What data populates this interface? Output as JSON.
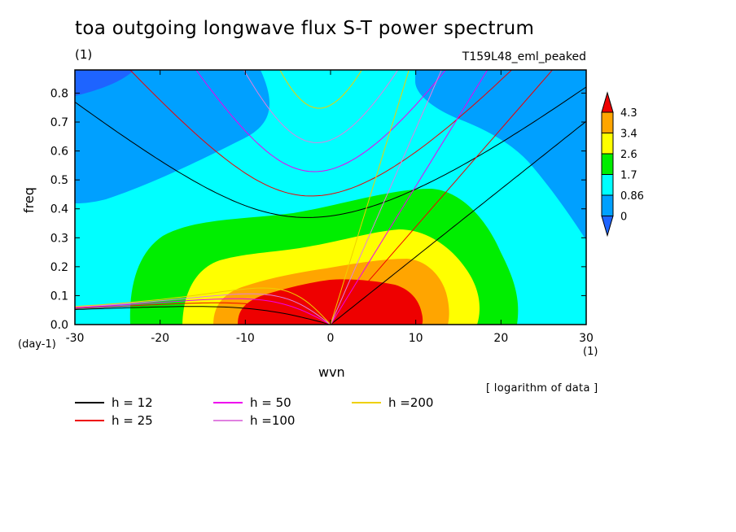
{
  "chart_data": {
    "type": "heatmap",
    "title": "toa outgoing longwave flux S-T power spectrum",
    "units": "(1)",
    "run_name": "T159L48_eml_peaked",
    "xlabel": "wvn",
    "ylabel": "freq",
    "x_unit_left": "(day-1)",
    "x_unit_right": "(1)",
    "xlim": [
      -30,
      30
    ],
    "ylim": [
      0,
      0.88
    ],
    "x_ticks": [
      "-30",
      "-20",
      "-10",
      "0",
      "10",
      "20",
      "30"
    ],
    "y_ticks": [
      "0.0",
      "0.1",
      "0.2",
      "0.3",
      "0.4",
      "0.5",
      "0.6",
      "0.7",
      "0.8"
    ],
    "note": "[ logarithm of data ]",
    "colorbar": {
      "labels": [
        "4.3",
        "3.4",
        "2.6",
        "1.7",
        "0.86",
        "0"
      ],
      "colors": [
        "#ee0000",
        "#ffa500",
        "#ffff00",
        "#00ee00",
        "#00ffff",
        "#00a0ff",
        "#1e64ff"
      ]
    },
    "dispersion_curves": [
      {
        "label": "h = 12",
        "h": 12,
        "color": "#000000"
      },
      {
        "label": "h = 25",
        "h": 25,
        "color": "#ee0000"
      },
      {
        "label": "h = 50",
        "h": 50,
        "color": "#ee00ee"
      },
      {
        "label": "h =100",
        "h": 100,
        "color": "#e080e0"
      },
      {
        "label": "h =200",
        "h": 200,
        "color": "#eed000"
      }
    ],
    "regions": [
      {
        "level": "0.86-1.7",
        "description": "background band",
        "color": "#00ffff"
      },
      {
        "level": "0-0.86",
        "description": "upper corners",
        "color": "#00a0ff"
      },
      {
        "level": "1.7-2.6",
        "description": "low freq core",
        "color": "#00ee00"
      },
      {
        "level": "2.6-3.4",
        "color": "#ffff00"
      },
      {
        "level": "3.4-4.3",
        "color": "#ffa500"
      },
      {
        "level": ">4.3",
        "description": "peak near wvn 0-10, freq <0.17",
        "color": "#ee0000"
      }
    ]
  }
}
